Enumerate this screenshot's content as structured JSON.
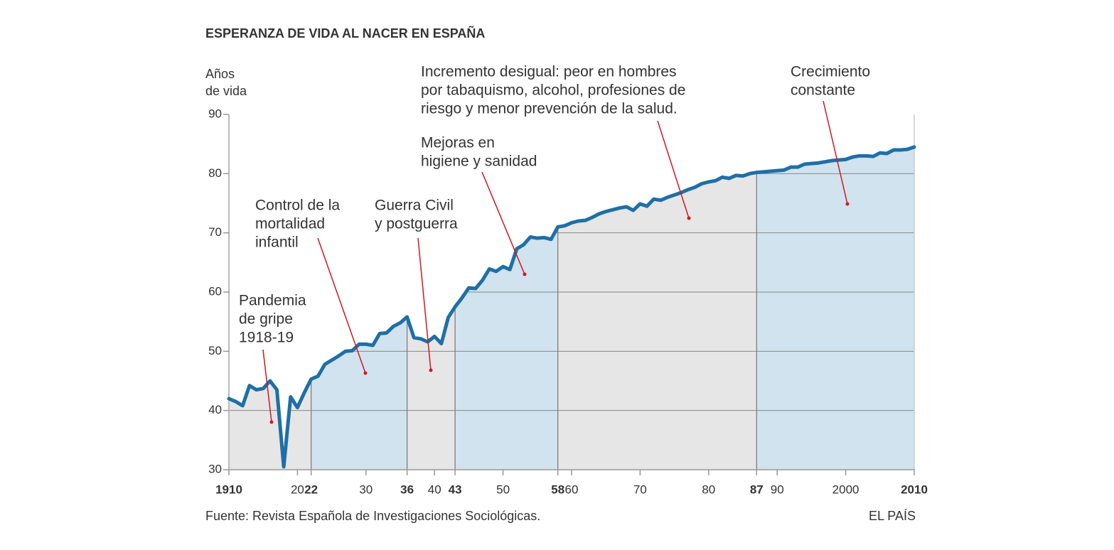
{
  "chart_data": {
    "type": "area-line",
    "title": "ESPERANZA DE VIDA AL NACER EN ESPAÑA",
    "y_label": [
      "Años",
      "de vida"
    ],
    "source": "Fuente: Revista Española de Investigaciones Sociológicas.",
    "credit": "EL PAÍS",
    "x": [
      1910,
      1911,
      1912,
      1913,
      1914,
      1915,
      1916,
      1917,
      1918,
      1919,
      1920,
      1921,
      1922,
      1923,
      1924,
      1925,
      1926,
      1927,
      1928,
      1929,
      1930,
      1931,
      1932,
      1933,
      1934,
      1935,
      1936,
      1937,
      1938,
      1939,
      1940,
      1941,
      1942,
      1943,
      1944,
      1945,
      1946,
      1947,
      1948,
      1949,
      1950,
      1951,
      1952,
      1953,
      1954,
      1955,
      1956,
      1957,
      1958,
      1959,
      1960,
      1961,
      1962,
      1963,
      1964,
      1965,
      1966,
      1967,
      1968,
      1969,
      1970,
      1971,
      1972,
      1973,
      1974,
      1975,
      1976,
      1977,
      1978,
      1979,
      1980,
      1981,
      1982,
      1983,
      1984,
      1985,
      1986,
      1987,
      1988,
      1989,
      1990,
      1991,
      1992,
      1993,
      1994,
      1995,
      1996,
      1997,
      1998,
      1999,
      2000,
      2001,
      2002,
      2003,
      2004,
      2005,
      2006,
      2007,
      2008,
      2009,
      2010
    ],
    "values": [
      42,
      41.5,
      40.8,
      44.2,
      43.5,
      43.7,
      45,
      43.5,
      30.5,
      42.3,
      40.5,
      43,
      45.3,
      45.8,
      47.8,
      48.5,
      49.2,
      50,
      50.1,
      51.2,
      51.2,
      51,
      53,
      53.1,
      54.2,
      54.8,
      55.8,
      52.3,
      52.1,
      51.6,
      52.5,
      51.3,
      55.7,
      57.5,
      59,
      60.7,
      60.6,
      62,
      63.9,
      63.5,
      64.3,
      63.8,
      67.3,
      68,
      69.3,
      69.1,
      69.2,
      68.9,
      71,
      71.2,
      71.7,
      72,
      72.1,
      72.6,
      73.2,
      73.6,
      73.9,
      74.2,
      74.4,
      73.8,
      74.9,
      74.5,
      75.7,
      75.5,
      76,
      76.4,
      76.8,
      77.3,
      77.7,
      78.3,
      78.6,
      78.8,
      79.4,
      79.2,
      79.7,
      79.6,
      80,
      80.2,
      80.3,
      80.4,
      80.5,
      80.6,
      81.1,
      81.1,
      81.6,
      81.7,
      81.8,
      82,
      82.2,
      82.3,
      82.4,
      82.8,
      83,
      83,
      82.9,
      83.5,
      83.4,
      84,
      84,
      84.1,
      84.5
    ],
    "color": "#1f6fa6",
    "period_bounds": [
      1922,
      1936,
      1943,
      1958,
      1987
    ],
    "period_colors": [
      "#e6e6e6",
      "#d0e3ee"
    ],
    "xlim": [
      1910,
      2010
    ],
    "ylim": [
      30,
      90
    ],
    "yticks": [
      30,
      40,
      50,
      60,
      70,
      80,
      90
    ],
    "xticks": [
      1910,
      {
        "value": 1920,
        "label": "20"
      },
      {
        "value": 1922,
        "label": "22"
      },
      {
        "value": 1930,
        "label": "30"
      },
      {
        "value": 1936,
        "label": "36"
      },
      {
        "value": 1940,
        "label": "40"
      },
      {
        "value": 1943,
        "label": "43"
      },
      {
        "value": 1950,
        "label": "50"
      },
      {
        "value": 1958,
        "label": "58"
      },
      {
        "value": 1960,
        "label": "60"
      },
      {
        "value": 1970,
        "label": "70"
      },
      {
        "value": 1980,
        "label": "80"
      },
      {
        "value": 1987,
        "label": "87"
      },
      {
        "value": 1990,
        "label": "90"
      },
      2000,
      2010
    ],
    "grid": true,
    "annotations": [
      [
        "Pandemia",
        "de gripe",
        "1918-19"
      ],
      [
        "Control de la",
        "mortalidad",
        "infantil"
      ],
      [
        "Guerra Civil",
        "y postguerra"
      ],
      [
        "Mejoras en",
        "higiene y sanidad"
      ],
      [
        "Incremento desigual: peor en hombres",
        "por tabaquismo, alcohol, profesiones de",
        "riesgo y menor prevención de la salud."
      ],
      [
        "Crecimiento",
        "constante"
      ]
    ]
  }
}
